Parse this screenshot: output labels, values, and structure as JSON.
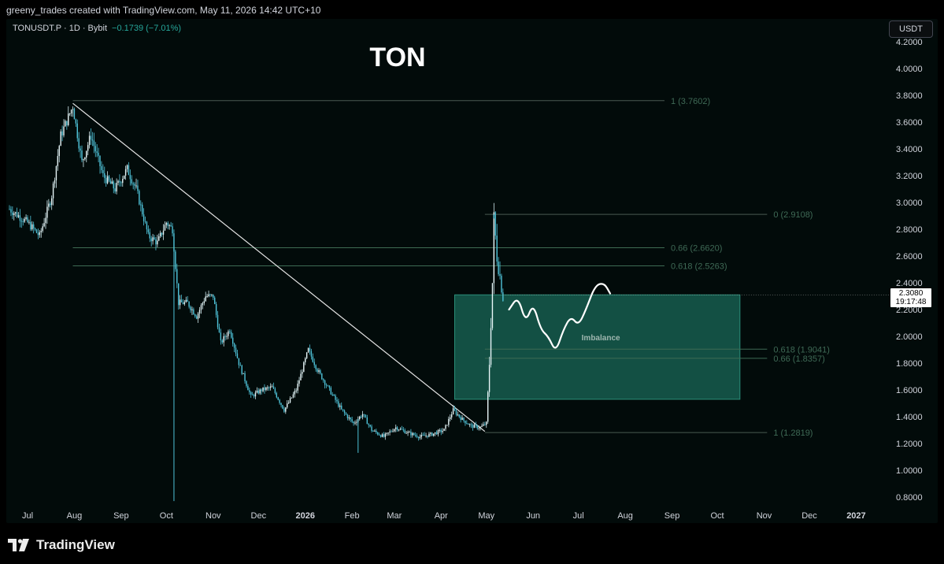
{
  "header": {
    "attribution": "greeny_trades created with TradingView.com, May 11, 2026 14:42 UTC+10"
  },
  "legend": {
    "symbol": "TONUSDT.P · 1D · Bybit",
    "change": "−0.1739 (−7.01%)"
  },
  "currency_button": "USDT",
  "current_price": {
    "value": "2.3080",
    "countdown": "19:17:48"
  },
  "brand": "TradingView",
  "colors": {
    "background": "#020b0a",
    "candle": "#4fc3d9",
    "zone": "#1a6b5c",
    "fib_line": "#3e6b54",
    "text_dim": "#3c4a45"
  },
  "chart_data": {
    "type": "candlestick",
    "title": "TON",
    "ylim": [
      0.75,
      4.3
    ],
    "y_ticks": [
      "4.2000",
      "4.0000",
      "3.8000",
      "3.6000",
      "3.4000",
      "3.2000",
      "3.0000",
      "2.8000",
      "2.6000",
      "2.4000",
      "2.2000",
      "2.0000",
      "1.8000",
      "1.6000",
      "1.4000",
      "1.2000",
      "1.0000",
      "0.8000"
    ],
    "x_ticks": [
      {
        "label": "Jul",
        "day": 0,
        "bold": false
      },
      {
        "label": "Aug",
        "day": 31,
        "bold": false
      },
      {
        "label": "Sep",
        "day": 62,
        "bold": false
      },
      {
        "label": "Oct",
        "day": 92,
        "bold": false
      },
      {
        "label": "Nov",
        "day": 123,
        "bold": false
      },
      {
        "label": "Dec",
        "day": 153,
        "bold": false
      },
      {
        "label": "2026",
        "day": 184,
        "bold": true
      },
      {
        "label": "Feb",
        "day": 215,
        "bold": false
      },
      {
        "label": "Mar",
        "day": 243,
        "bold": false
      },
      {
        "label": "Apr",
        "day": 274,
        "bold": false
      },
      {
        "label": "May",
        "day": 304,
        "bold": false
      },
      {
        "label": "Jun",
        "day": 335,
        "bold": false
      },
      {
        "label": "Jul",
        "day": 365,
        "bold": false
      },
      {
        "label": "Aug",
        "day": 396,
        "bold": false
      },
      {
        "label": "Sep",
        "day": 427,
        "bold": false
      },
      {
        "label": "Oct",
        "day": 457,
        "bold": false
      },
      {
        "label": "Nov",
        "day": 488,
        "bold": false
      },
      {
        "label": "Dec",
        "day": 518,
        "bold": false
      },
      {
        "label": "2027",
        "day": 549,
        "bold": true
      }
    ],
    "price_keypoints": [
      [
        -12,
        2.95
      ],
      [
        0,
        2.85
      ],
      [
        8,
        2.75
      ],
      [
        16,
        3.05
      ],
      [
        22,
        3.5
      ],
      [
        30,
        3.72
      ],
      [
        36,
        3.3
      ],
      [
        42,
        3.5
      ],
      [
        50,
        3.2
      ],
      [
        58,
        3.1
      ],
      [
        66,
        3.25
      ],
      [
        72,
        3.1
      ],
      [
        80,
        2.75
      ],
      [
        86,
        2.7
      ],
      [
        92,
        2.85
      ],
      [
        96,
        2.8
      ],
      [
        100,
        2.25
      ],
      [
        106,
        2.25
      ],
      [
        112,
        2.15
      ],
      [
        118,
        2.3
      ],
      [
        123,
        2.3
      ],
      [
        128,
        1.95
      ],
      [
        134,
        2.05
      ],
      [
        140,
        1.8
      ],
      [
        148,
        1.55
      ],
      [
        155,
        1.6
      ],
      [
        162,
        1.62
      ],
      [
        170,
        1.45
      ],
      [
        178,
        1.6
      ],
      [
        186,
        1.9
      ],
      [
        192,
        1.75
      ],
      [
        200,
        1.6
      ],
      [
        208,
        1.45
      ],
      [
        216,
        1.35
      ],
      [
        222,
        1.42
      ],
      [
        228,
        1.3
      ],
      [
        236,
        1.25
      ],
      [
        244,
        1.32
      ],
      [
        252,
        1.28
      ],
      [
        260,
        1.25
      ],
      [
        268,
        1.27
      ],
      [
        276,
        1.3
      ],
      [
        282,
        1.45
      ],
      [
        288,
        1.38
      ],
      [
        294,
        1.33
      ],
      [
        300,
        1.32
      ],
      [
        304,
        1.35
      ],
      [
        306,
        1.8
      ],
      [
        308,
        2.4
      ],
      [
        309,
        2.88
      ],
      [
        311,
        2.6
      ],
      [
        313,
        2.45
      ],
      [
        315,
        2.3
      ]
    ],
    "wicks": [
      {
        "day": 97,
        "low": 0.77
      },
      {
        "day": 219,
        "low": 1.13
      },
      {
        "day": 309,
        "high": 2.91
      }
    ],
    "trendline": {
      "from": [
        30,
        3.74
      ],
      "to": [
        303,
        1.29
      ]
    },
    "fib_upper": {
      "x_from": 30,
      "x_to": 422,
      "levels": [
        {
          "price": 3.7602,
          "label": "1 (3.7602)"
        },
        {
          "price": 2.662,
          "label": "0.66 (2.6620)"
        },
        {
          "price": 2.5263,
          "label": "0.618 (2.5263)"
        }
      ]
    },
    "fib_lower": {
      "x_from": 303,
      "x_to": 490,
      "levels": [
        {
          "price": 2.9108,
          "label": "0 (2.9108)"
        },
        {
          "price": 1.9041,
          "label": "0.618 (1.9041)"
        },
        {
          "price": 1.8357,
          "label": "0.66 (1.8357)"
        },
        {
          "price": 1.2819,
          "label": "1 (1.2819)"
        }
      ]
    },
    "zone": {
      "x_from": 283,
      "x_to": 472,
      "price_low": 1.53,
      "price_high": 2.31,
      "label": "Imbalance"
    },
    "projection": [
      [
        319,
        2.2
      ],
      [
        325,
        2.3
      ],
      [
        330,
        2.1
      ],
      [
        335,
        2.25
      ],
      [
        340,
        2.05
      ],
      [
        345,
        2.0
      ],
      [
        350,
        1.88
      ],
      [
        355,
        2.05
      ],
      [
        360,
        2.15
      ],
      [
        365,
        2.08
      ],
      [
        370,
        2.2
      ],
      [
        376,
        2.38
      ],
      [
        382,
        2.4
      ],
      [
        386,
        2.32
      ]
    ]
  }
}
